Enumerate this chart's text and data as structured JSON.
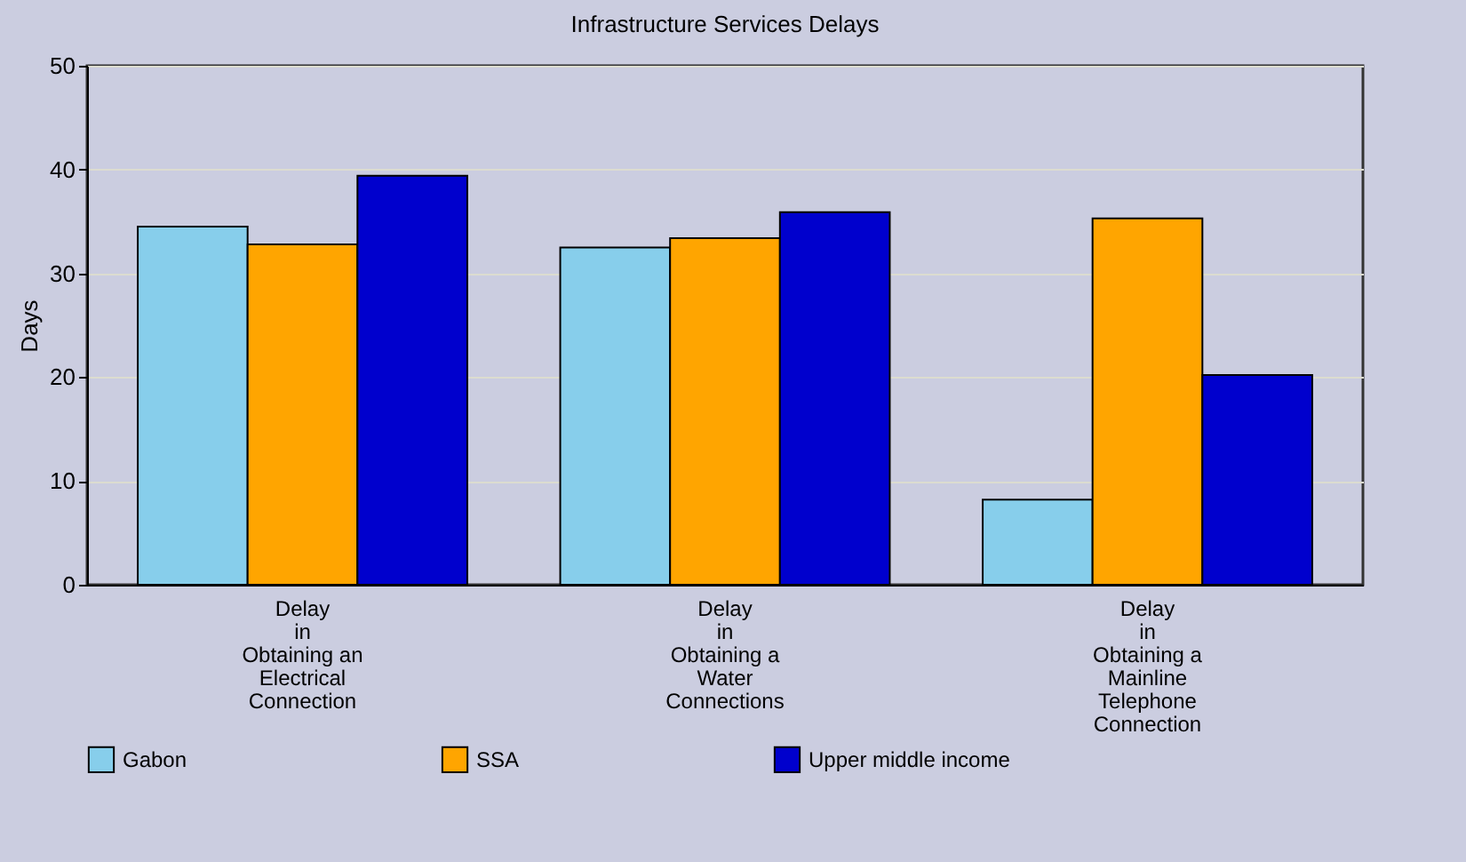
{
  "chart_data": {
    "type": "bar",
    "title": "Infrastructure Services Delays",
    "ylabel": "Days",
    "categories": [
      "Delay\nin\nObtaining an\nElectrical\nConnection",
      "Delay\nin\nObtaining a\nWater\nConnections",
      "Delay\nin\nObtaining a\nMainline\nTelephone\nConnection"
    ],
    "series": [
      {
        "name": "Gabon",
        "color": "#87ceeb",
        "values": [
          34.5,
          32.5,
          8.2
        ]
      },
      {
        "name": "SSA",
        "color": "#ffa500",
        "values": [
          32.8,
          33.4,
          35.3
        ]
      },
      {
        "name": "Upper middle income",
        "color": "#0000cd",
        "values": [
          39.4,
          35.9,
          20.2
        ]
      }
    ],
    "ylim": [
      0,
      50
    ],
    "yticks": [
      0,
      10,
      20,
      30,
      40,
      50
    ],
    "grid": "y",
    "legend": "bottom"
  }
}
